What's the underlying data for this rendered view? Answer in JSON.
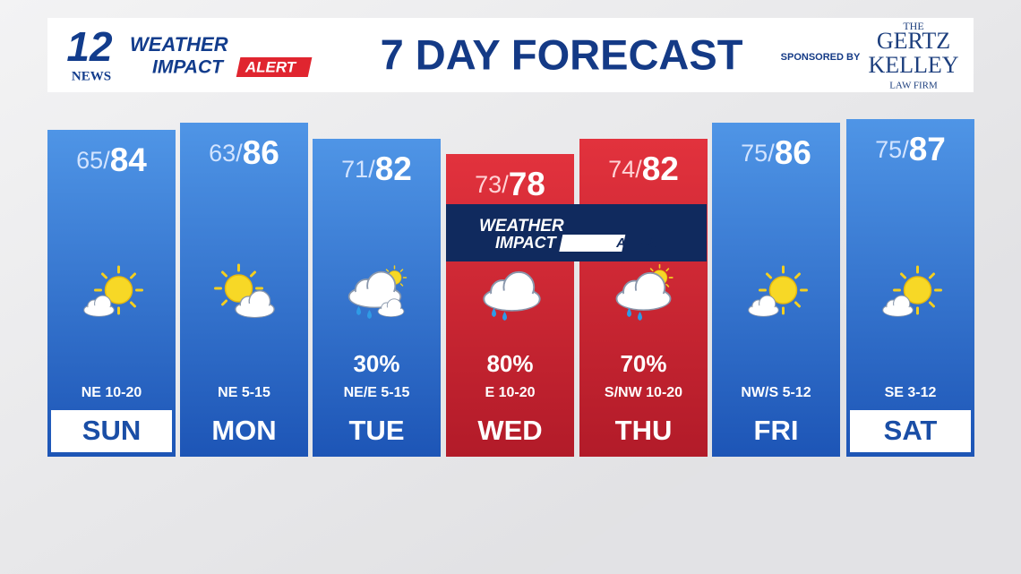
{
  "header": {
    "logo_number": "12",
    "logo_news": "NEWS",
    "logo_weather": "WEATHER",
    "logo_impact": "IMPACT",
    "logo_alert": "ALERT",
    "title": "7 DAY FORECAST",
    "sponsored_by": "SPONSORED BY",
    "sponsor_the": "THE",
    "sponsor_name_1": "GERTZ",
    "sponsor_name_2": "KELLEY",
    "sponsor_firm": "LAW FIRM"
  },
  "banner": {
    "weather": "WEATHER",
    "impact": "IMPACT",
    "alert": "ALERT"
  },
  "temp_separator": "/",
  "days": [
    {
      "day": "SUN",
      "low": 65,
      "high": 84,
      "wind": "NE 10-20"
    },
    {
      "day": "MON",
      "low": 63,
      "high": 86,
      "wind": "NE 5-15"
    },
    {
      "day": "TUE",
      "low": 71,
      "high": 82,
      "precip": "30%",
      "wind": "NE/E 5-15"
    },
    {
      "day": "WED",
      "low": 73,
      "high": 78,
      "precip": "80%",
      "wind": "E 10-20"
    },
    {
      "day": "THU",
      "low": 74,
      "high": 82,
      "precip": "70%",
      "wind": "S/NW 10-20"
    },
    {
      "day": "FRI",
      "low": 75,
      "high": 86,
      "wind": "NW/S 5-12"
    },
    {
      "day": "SAT",
      "low": 75,
      "high": 87,
      "wind": "SE 3-12"
    }
  ]
}
